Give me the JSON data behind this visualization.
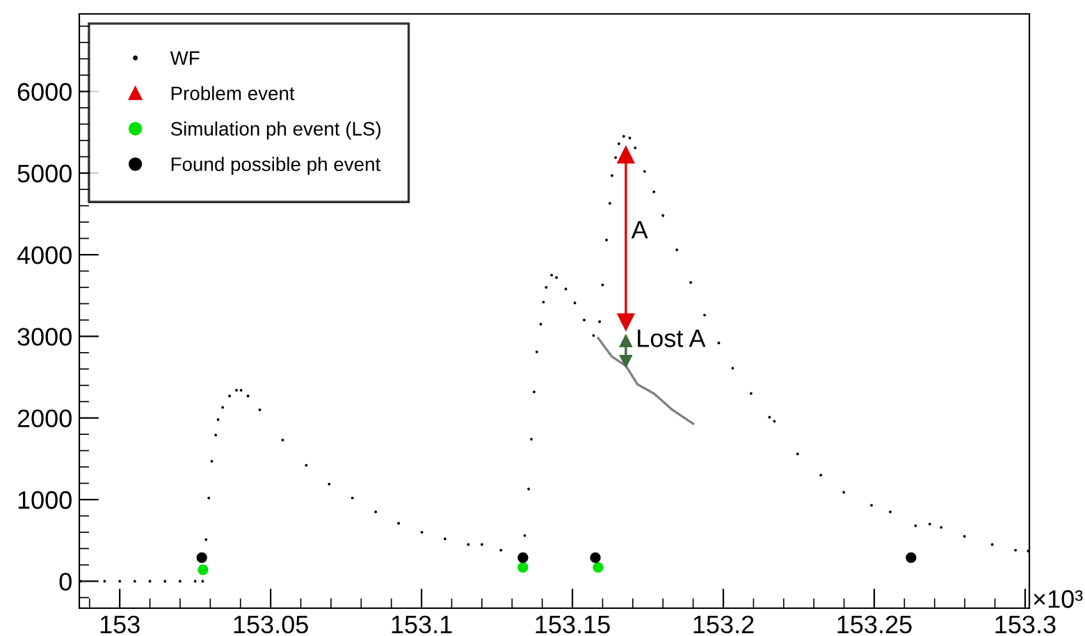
{
  "chart_data": {
    "type": "scatter",
    "xlim": [
      152.9866,
      153.3014
    ],
    "ylim": [
      -330,
      6950
    ],
    "xticks": [
      153,
      153.05,
      153.1,
      153.15,
      153.2,
      153.25,
      153.3
    ],
    "yticks": [
      0,
      1000,
      2000,
      3000,
      4000,
      5000,
      6000
    ],
    "grid": false,
    "legend": "top left",
    "annotations": [
      "×10³",
      {
        "text": "A",
        "x": 153.1695,
        "y": 4280
      },
      {
        "text": "Lost A",
        "x": 153.171,
        "y": 2950
      }
    ],
    "series": [
      {
        "name": "WF",
        "color": "#000000",
        "marker": "circle",
        "x": [
          152.987,
          152.995,
          153.0,
          153.005,
          153.01,
          153.015,
          153.02,
          153.025,
          153.0275,
          153.0286,
          153.0295,
          153.0305,
          153.0318,
          153.0326,
          153.0341,
          153.0364,
          153.0387,
          153.0402,
          153.0425,
          153.0464,
          153.054,
          153.0618,
          153.0694,
          153.0771,
          153.0848,
          153.0924,
          153.1001,
          153.1078,
          153.1155,
          153.12,
          153.1263,
          153.1342,
          153.1355,
          153.1364,
          153.1373,
          153.1382,
          153.1395,
          153.1404,
          153.1413,
          153.1431,
          153.1447,
          153.1478,
          153.1508,
          153.1539,
          153.157,
          153.159,
          153.16,
          153.1613,
          153.1624,
          153.1631,
          153.1643,
          153.1654,
          153.167,
          153.169,
          153.1708,
          153.1739,
          153.177,
          153.18,
          153.1846,
          153.1892,
          153.1938,
          153.1985,
          153.2031,
          153.2092,
          153.2153,
          153.2169,
          153.2246,
          153.2323,
          153.2399,
          153.2491,
          153.2553,
          153.2637,
          153.2684,
          153.2722,
          153.2799,
          153.2891,
          153.2968,
          153.301
        ],
        "values": [
          0,
          0,
          0,
          0,
          0,
          0,
          0,
          0,
          0,
          510,
          1020,
          1470,
          1790,
          1980,
          2130,
          2270,
          2340,
          2340,
          2270,
          2100,
          1730,
          1420,
          1190,
          1020,
          850,
          710,
          600,
          520,
          450,
          450,
          380,
          560,
          1130,
          1740,
          2320,
          2810,
          3150,
          3420,
          3600,
          3750,
          3720,
          3580,
          3410,
          3200,
          3010,
          3180,
          3630,
          4180,
          4630,
          4970,
          5190,
          5360,
          5450,
          5430,
          5310,
          5020,
          4770,
          4480,
          4060,
          3660,
          3260,
          2920,
          2610,
          2300,
          2010,
          1960,
          1560,
          1300,
          1090,
          930,
          850,
          680,
          700,
          660,
          550,
          450,
          380,
          370
        ]
      },
      {
        "name": "Problem event",
        "type": "line",
        "color": "#e00000",
        "marker": "triangle",
        "x": [
          153.1677,
          153.1677
        ],
        "values": [
          5230,
          3170
        ]
      },
      {
        "name": "Simulation ph event (LS)",
        "color": "#00e000",
        "marker": "circle",
        "x": [
          153.0276,
          153.1336,
          153.1585
        ],
        "values": [
          140,
          170,
          170
        ]
      },
      {
        "name": "Found possible ph event",
        "color": "#000000",
        "marker": "circle",
        "x": [
          153.0272,
          153.1336,
          153.1576,
          153.2622
        ],
        "values": [
          290,
          290,
          290,
          290
        ]
      },
      {
        "type": "line",
        "color": "#808080",
        "marker": "none",
        "x": [
          153.1585,
          153.1631,
          153.1677,
          153.1716,
          153.177,
          153.1831,
          153.19
        ],
        "values": [
          2980,
          2750,
          2640,
          2410,
          2300,
          2100,
          1930
        ]
      },
      {
        "type": "line",
        "color": "#3d6b3d",
        "marker": "triangle",
        "x": [
          153.1677,
          153.1677
        ],
        "values": [
          2950,
          2690
        ]
      }
    ]
  }
}
